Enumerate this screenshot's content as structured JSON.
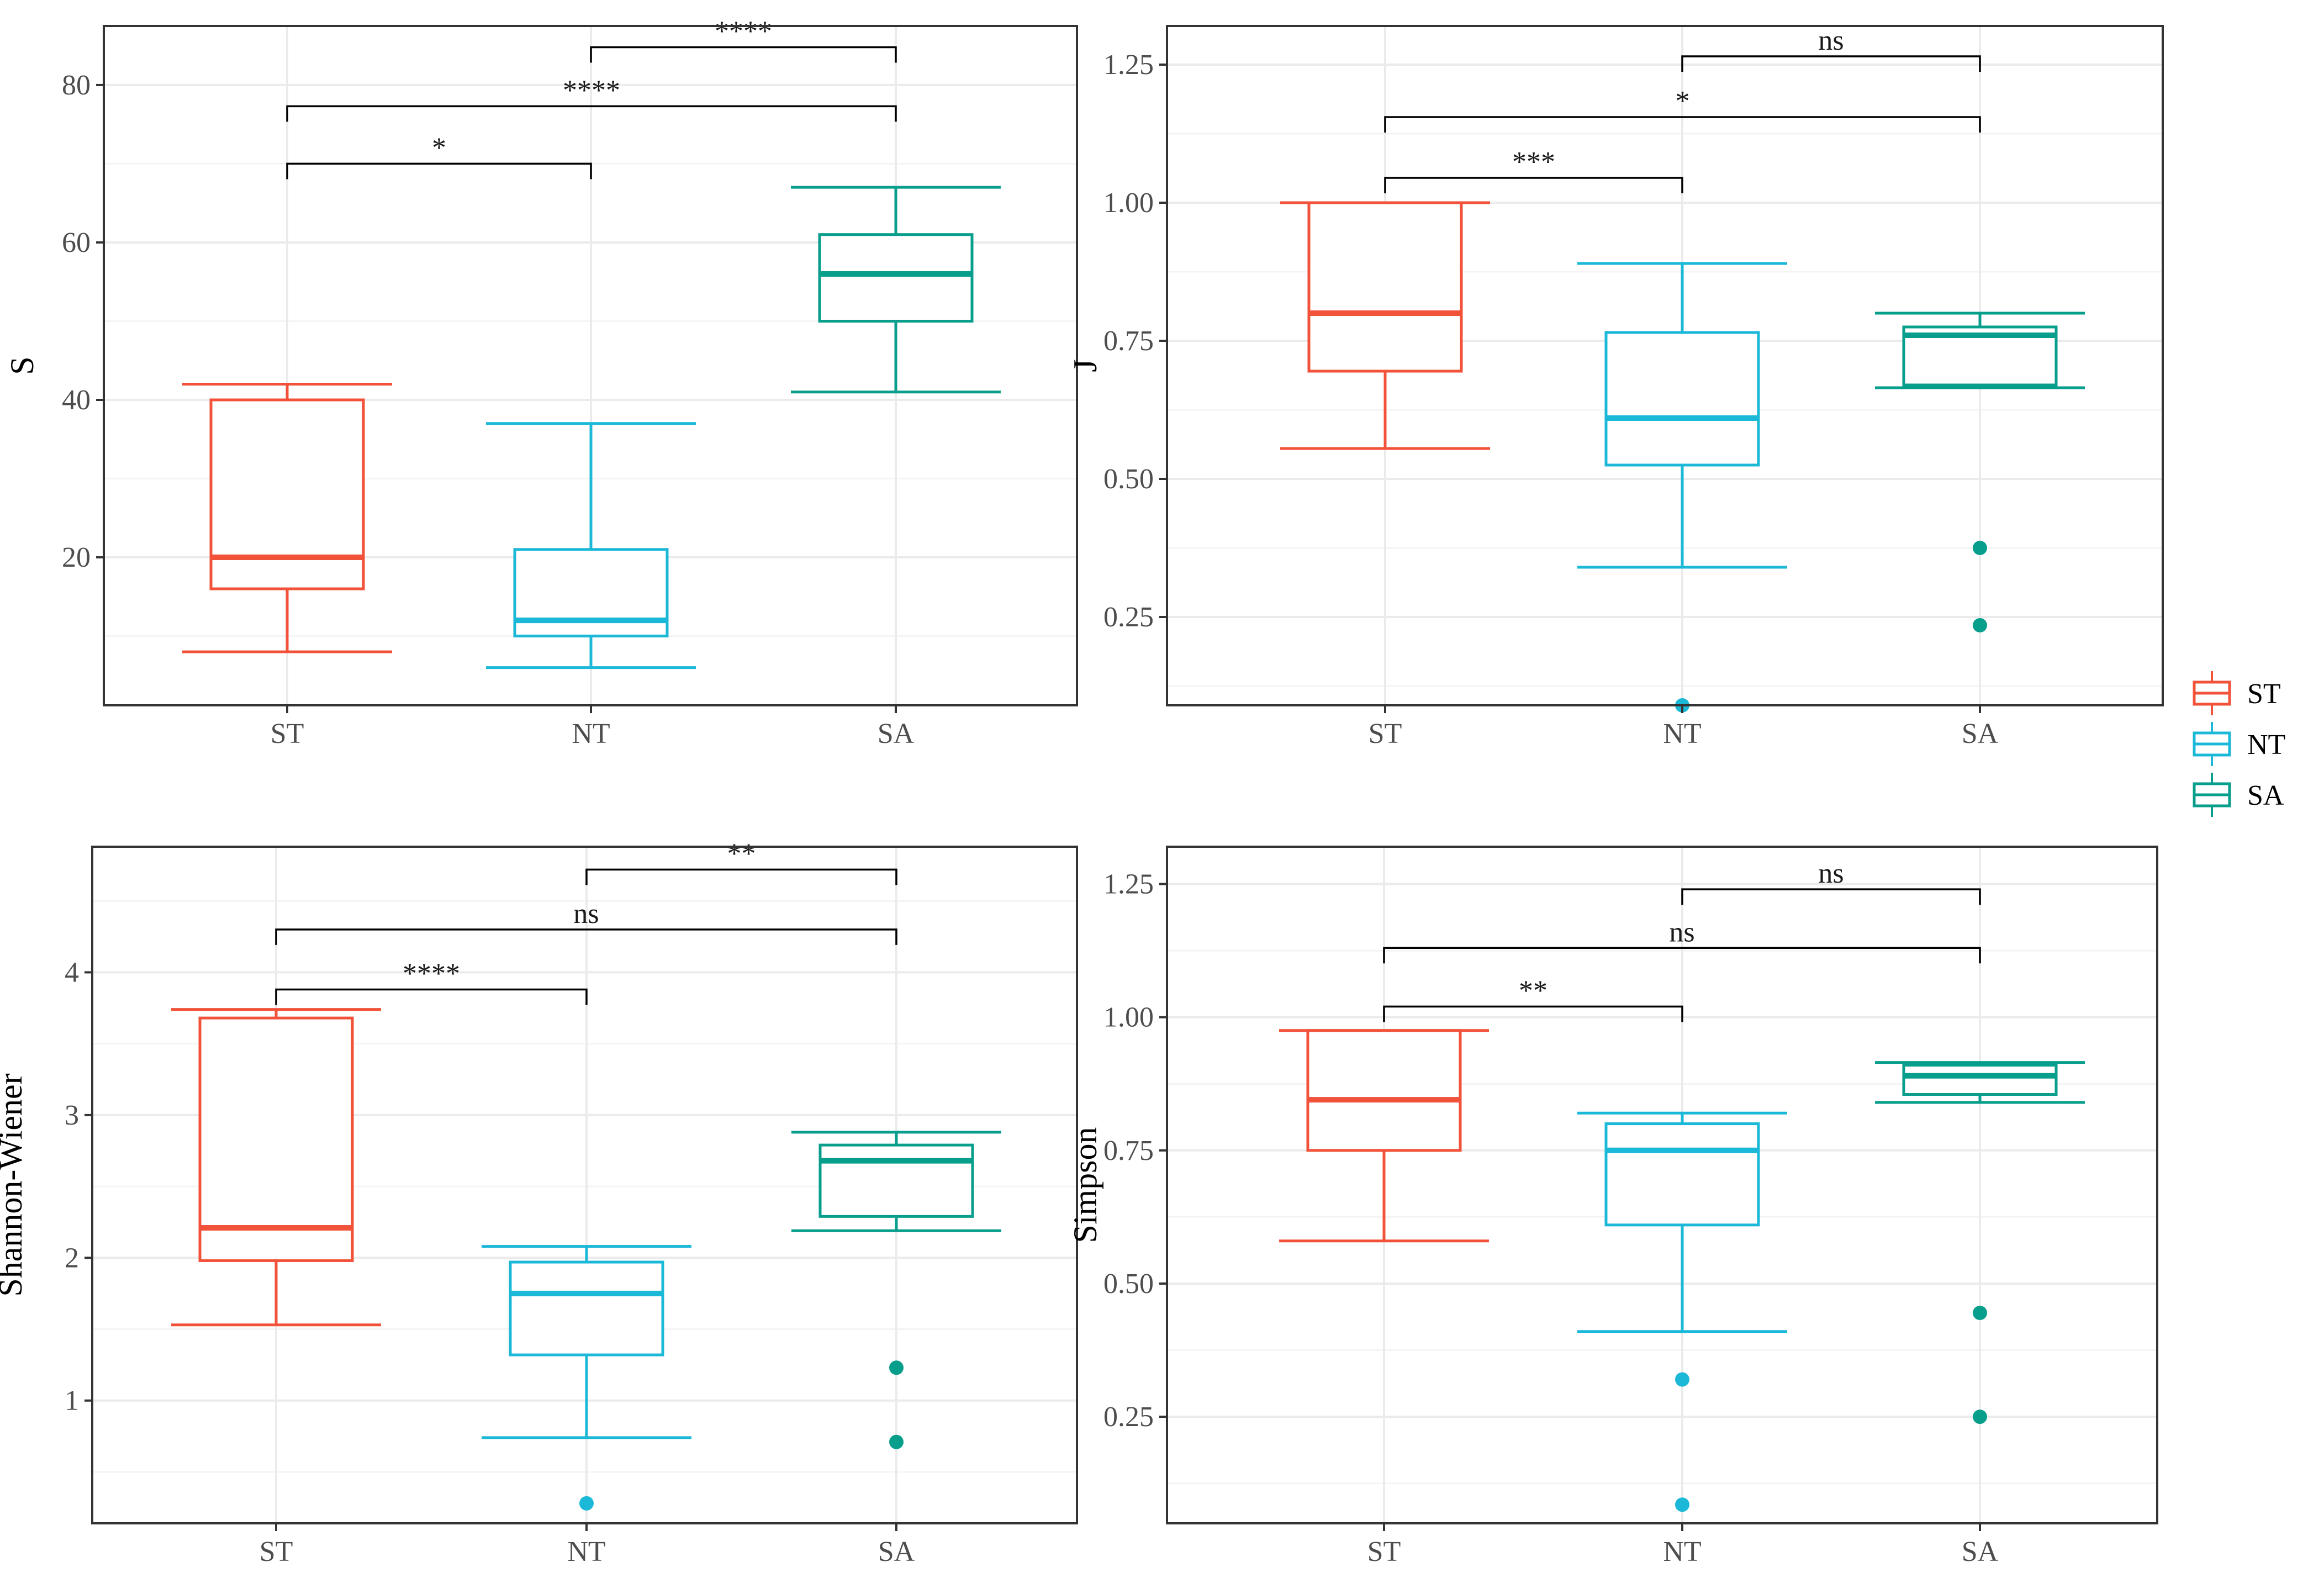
{
  "figure": {
    "legend": {
      "entries": [
        {
          "label": "ST",
          "color": "#F2523A"
        },
        {
          "label": "NT",
          "color": "#1CB8D8"
        },
        {
          "label": "SA",
          "color": "#089E8C"
        }
      ]
    }
  },
  "chart_data": [
    {
      "type": "box",
      "title": "",
      "xlabel": "",
      "ylabel": "S",
      "categories": [
        "ST",
        "NT",
        "SA"
      ],
      "ylim": [
        1.2,
        87.5
      ],
      "yticks": [
        20,
        40,
        60,
        80
      ],
      "ytick_labels": [
        "20",
        "40",
        "60",
        "80"
      ],
      "series": [
        {
          "name": "ST",
          "color": "#F2523A",
          "whisker_low": 8,
          "q1": 16,
          "median": 20,
          "q3": 40,
          "whisker_high": 42,
          "outliers": []
        },
        {
          "name": "NT",
          "color": "#1CB8D8",
          "whisker_low": 6,
          "q1": 10,
          "median": 12,
          "q3": 21,
          "whisker_high": 37,
          "outliers": []
        },
        {
          "name": "SA",
          "color": "#089E8C",
          "whisker_low": 41,
          "q1": 50,
          "median": 56,
          "q3": 61,
          "whisker_high": 67,
          "outliers": []
        }
      ],
      "comparisons": [
        {
          "from": "ST",
          "to": "NT",
          "label": "*",
          "y": 70
        },
        {
          "from": "ST",
          "to": "SA",
          "label": "****",
          "y": 77.3
        },
        {
          "from": "NT",
          "to": "SA",
          "label": "****",
          "y": 84.8
        }
      ]
    },
    {
      "type": "box",
      "title": "",
      "xlabel": "",
      "ylabel": "J",
      "categories": [
        "ST",
        "NT",
        "SA"
      ],
      "ylim": [
        0.09,
        1.32
      ],
      "yticks": [
        0.25,
        0.5,
        0.75,
        1.0,
        1.25
      ],
      "ytick_labels": [
        "0.25",
        "0.50",
        "0.75",
        "1.00",
        "1.25"
      ],
      "series": [
        {
          "name": "ST",
          "color": "#F2523A",
          "whisker_low": 0.555,
          "q1": 0.695,
          "median": 0.8,
          "q3": 1.0,
          "whisker_high": 1.0,
          "outliers": []
        },
        {
          "name": "NT",
          "color": "#1CB8D8",
          "whisker_low": 0.34,
          "q1": 0.525,
          "median": 0.61,
          "q3": 0.765,
          "whisker_high": 0.89,
          "outliers": [
            0.09
          ]
        },
        {
          "name": "SA",
          "color": "#089E8C",
          "whisker_low": 0.665,
          "q1": 0.67,
          "median": 0.76,
          "q3": 0.775,
          "whisker_high": 0.8,
          "outliers": [
            0.375,
            0.235
          ]
        }
      ],
      "comparisons": [
        {
          "from": "ST",
          "to": "NT",
          "label": "***",
          "y": 1.045
        },
        {
          "from": "ST",
          "to": "SA",
          "label": "*",
          "y": 1.155
        },
        {
          "from": "NT",
          "to": "SA",
          "label": "ns",
          "y": 1.265
        }
      ]
    },
    {
      "type": "box",
      "title": "",
      "xlabel": "",
      "ylabel": "Shannon-Wiener",
      "categories": [
        "ST",
        "NT",
        "SA"
      ],
      "ylim": [
        0.14,
        4.88
      ],
      "yticks": [
        1,
        2,
        3,
        4
      ],
      "ytick_labels": [
        "1",
        "2",
        "3",
        "4"
      ],
      "series": [
        {
          "name": "ST",
          "color": "#F2523A",
          "whisker_low": 1.53,
          "q1": 1.98,
          "median": 2.21,
          "q3": 3.68,
          "whisker_high": 3.74,
          "outliers": []
        },
        {
          "name": "NT",
          "color": "#1CB8D8",
          "whisker_low": 0.74,
          "q1": 1.32,
          "median": 1.75,
          "q3": 1.97,
          "whisker_high": 2.08,
          "outliers": [
            0.28
          ]
        },
        {
          "name": "SA",
          "color": "#089E8C",
          "whisker_low": 2.19,
          "q1": 2.29,
          "median": 2.68,
          "q3": 2.79,
          "whisker_high": 2.88,
          "outliers": [
            1.23,
            0.71
          ]
        }
      ],
      "comparisons": [
        {
          "from": "ST",
          "to": "NT",
          "label": "****",
          "y": 3.88
        },
        {
          "from": "ST",
          "to": "SA",
          "label": "ns",
          "y": 4.3
        },
        {
          "from": "NT",
          "to": "SA",
          "label": "**",
          "y": 4.72
        }
      ]
    },
    {
      "type": "box",
      "title": "",
      "xlabel": "",
      "ylabel": "Simpson",
      "categories": [
        "ST",
        "NT",
        "SA"
      ],
      "ylim": [
        0.05,
        1.32
      ],
      "yticks": [
        0.25,
        0.5,
        0.75,
        1.0,
        1.25
      ],
      "ytick_labels": [
        "0.25",
        "0.50",
        "0.75",
        "1.00",
        "1.25"
      ],
      "series": [
        {
          "name": "ST",
          "color": "#F2523A",
          "whisker_low": 0.58,
          "q1": 0.75,
          "median": 0.845,
          "q3": 0.975,
          "whisker_high": 0.975,
          "outliers": []
        },
        {
          "name": "NT",
          "color": "#1CB8D8",
          "whisker_low": 0.41,
          "q1": 0.61,
          "median": 0.75,
          "q3": 0.8,
          "whisker_high": 0.82,
          "outliers": [
            0.32,
            0.085
          ]
        },
        {
          "name": "SA",
          "color": "#089E8C",
          "whisker_low": 0.84,
          "q1": 0.855,
          "median": 0.89,
          "q3": 0.91,
          "whisker_high": 0.915,
          "outliers": [
            0.445,
            0.25
          ]
        }
      ],
      "comparisons": [
        {
          "from": "ST",
          "to": "NT",
          "label": "**",
          "y": 1.02
        },
        {
          "from": "ST",
          "to": "SA",
          "label": "ns",
          "y": 1.13
        },
        {
          "from": "NT",
          "to": "SA",
          "label": "ns",
          "y": 1.24
        }
      ]
    }
  ]
}
